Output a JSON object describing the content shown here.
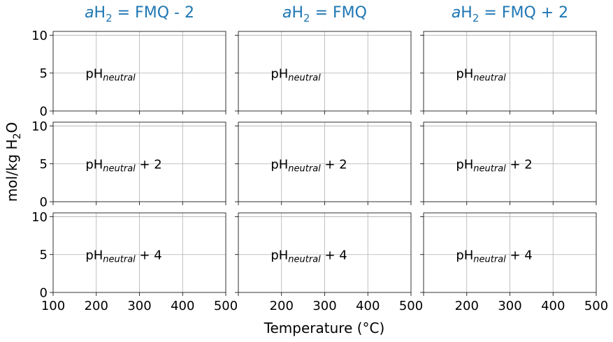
{
  "chart_data": {
    "type": "line",
    "layout": {
      "rows": 3,
      "cols": 3,
      "sharex": true,
      "sharey": true
    },
    "xlabel": "Temperature (°C)",
    "ylabel": {
      "main": "mol/kg H",
      "sub": "2",
      "tail": "O"
    },
    "xlim": [
      100,
      500
    ],
    "ylim": [
      0,
      10.5
    ],
    "xticks": [
      100,
      200,
      300,
      400,
      500
    ],
    "yticks": [
      0,
      5,
      10
    ],
    "grid": true,
    "column_titles": [
      {
        "italic": "a",
        "main": "H",
        "sub": "2",
        "tail": " = FMQ - 2"
      },
      {
        "italic": "a",
        "main": "H",
        "sub": "2",
        "tail": " = FMQ"
      },
      {
        "italic": "a",
        "main": "H",
        "sub": "2",
        "tail": " = FMQ + 2"
      }
    ],
    "row_labels": [
      {
        "main": "pH",
        "sub": "neutral",
        "tail": ""
      },
      {
        "main": "pH",
        "sub": "neutral",
        "tail": " + 2"
      },
      {
        "main": "pH",
        "sub": "neutral",
        "tail": " + 4"
      }
    ],
    "label_position": {
      "x": 175,
      "y": 5
    },
    "series": [],
    "colors": {
      "title": "#1f77b4",
      "text": "#000000",
      "grid": "#b0b0b0",
      "axes": "#000000"
    }
  }
}
